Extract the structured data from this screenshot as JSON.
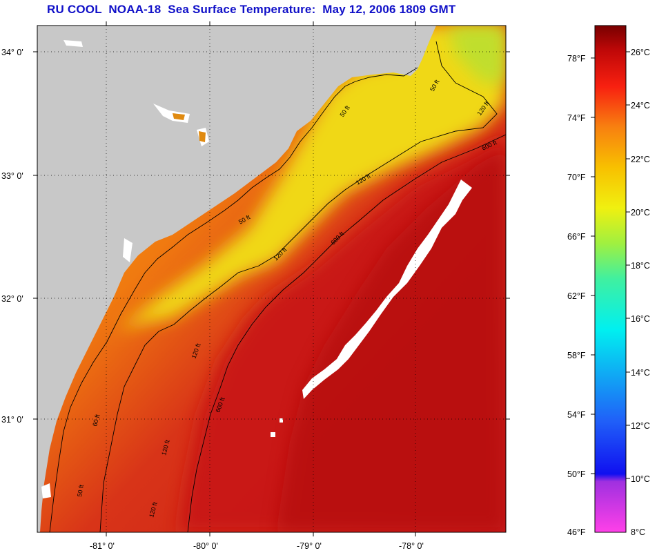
{
  "title": "RU COOL  NOAA-18  Sea Surface Temperature:  May 12, 2006 1809 GMT",
  "lat_labels": [
    "34° 0'",
    "33° 0'",
    "32° 0'",
    "31° 0'"
  ],
  "lon_labels": [
    "-81° 0'",
    "-80° 0'",
    "-79° 0'",
    "-78° 0'"
  ],
  "contour_labels": [
    "50 ft",
    "50 ft",
    "120 ft",
    "120 ft",
    "600 ft",
    "50 ft",
    "120 ft",
    "600 ft",
    "120 ft",
    "600 ft",
    "60 ft",
    "120 ft",
    "50 ft",
    "120 ft"
  ],
  "colorbar": {
    "fahrenheit": [
      "78°F",
      "74°F",
      "70°F",
      "66°F",
      "62°F",
      "58°F",
      "54°F",
      "50°F",
      "46°F"
    ],
    "celsius": [
      "26°C",
      "24°C",
      "22°C",
      "20°C",
      "18°C",
      "16°C",
      "14°C",
      "12°C",
      "10°C",
      "8°C"
    ]
  },
  "colors": {
    "land": "#c8c8c8",
    "cloud": "#ffffff",
    "warm": "#c81414",
    "cool": "#f0e614",
    "title": "#1010c8"
  }
}
